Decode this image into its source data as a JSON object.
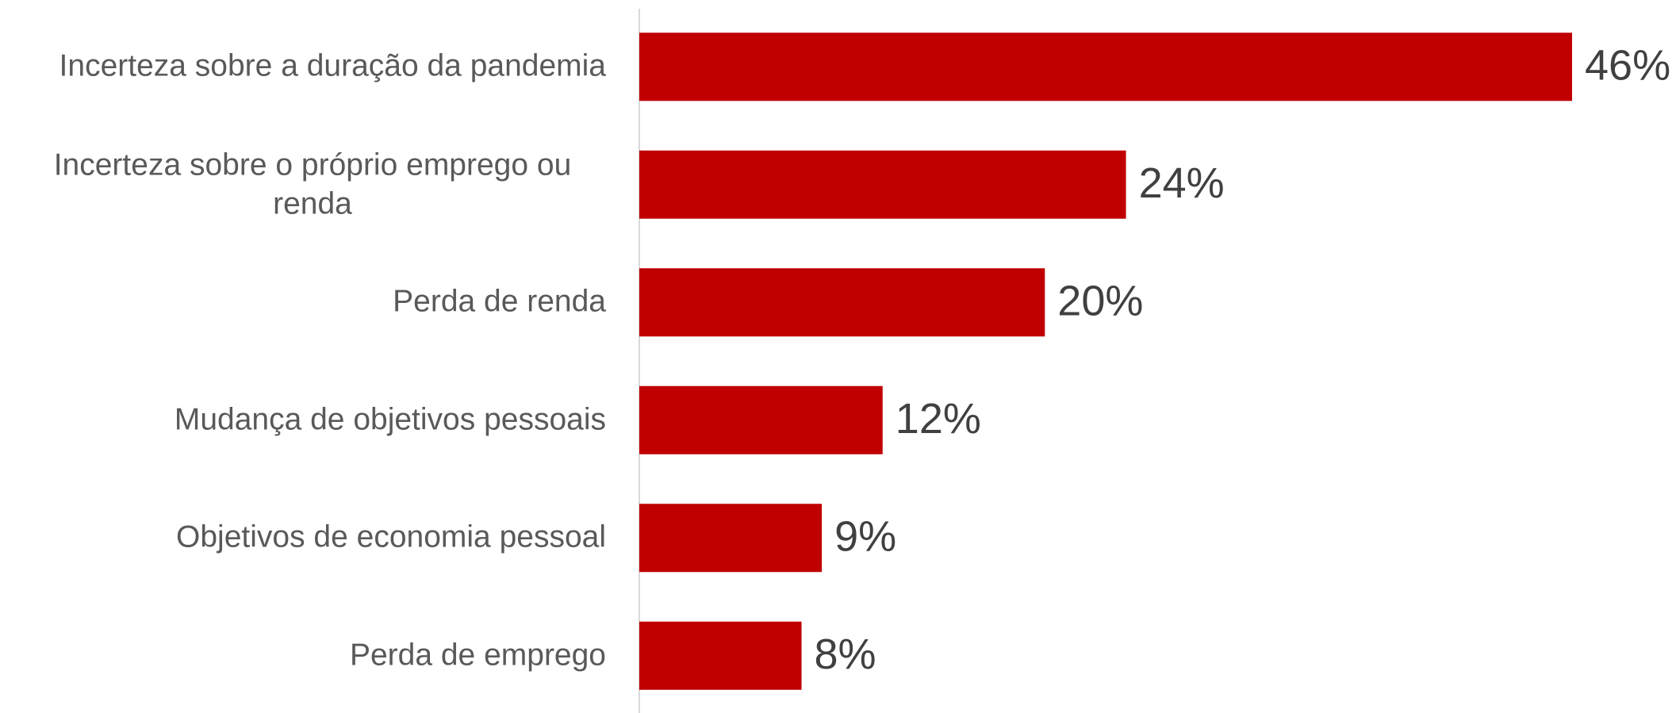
{
  "chart_data": {
    "type": "bar",
    "orientation": "horizontal",
    "categories": [
      "Incerteza sobre a duração da pandemia",
      "Incerteza sobre o próprio emprego ou renda",
      "Perda de renda",
      "Mudança de objetivos pessoais",
      "Objetivos de economia pessoal",
      "Perda de emprego"
    ],
    "values": [
      46,
      24,
      20,
      12,
      9,
      8
    ],
    "value_labels": [
      "46%",
      "24%",
      "20%",
      "12%",
      "9%",
      "8%"
    ],
    "color": "#c00000"
  }
}
